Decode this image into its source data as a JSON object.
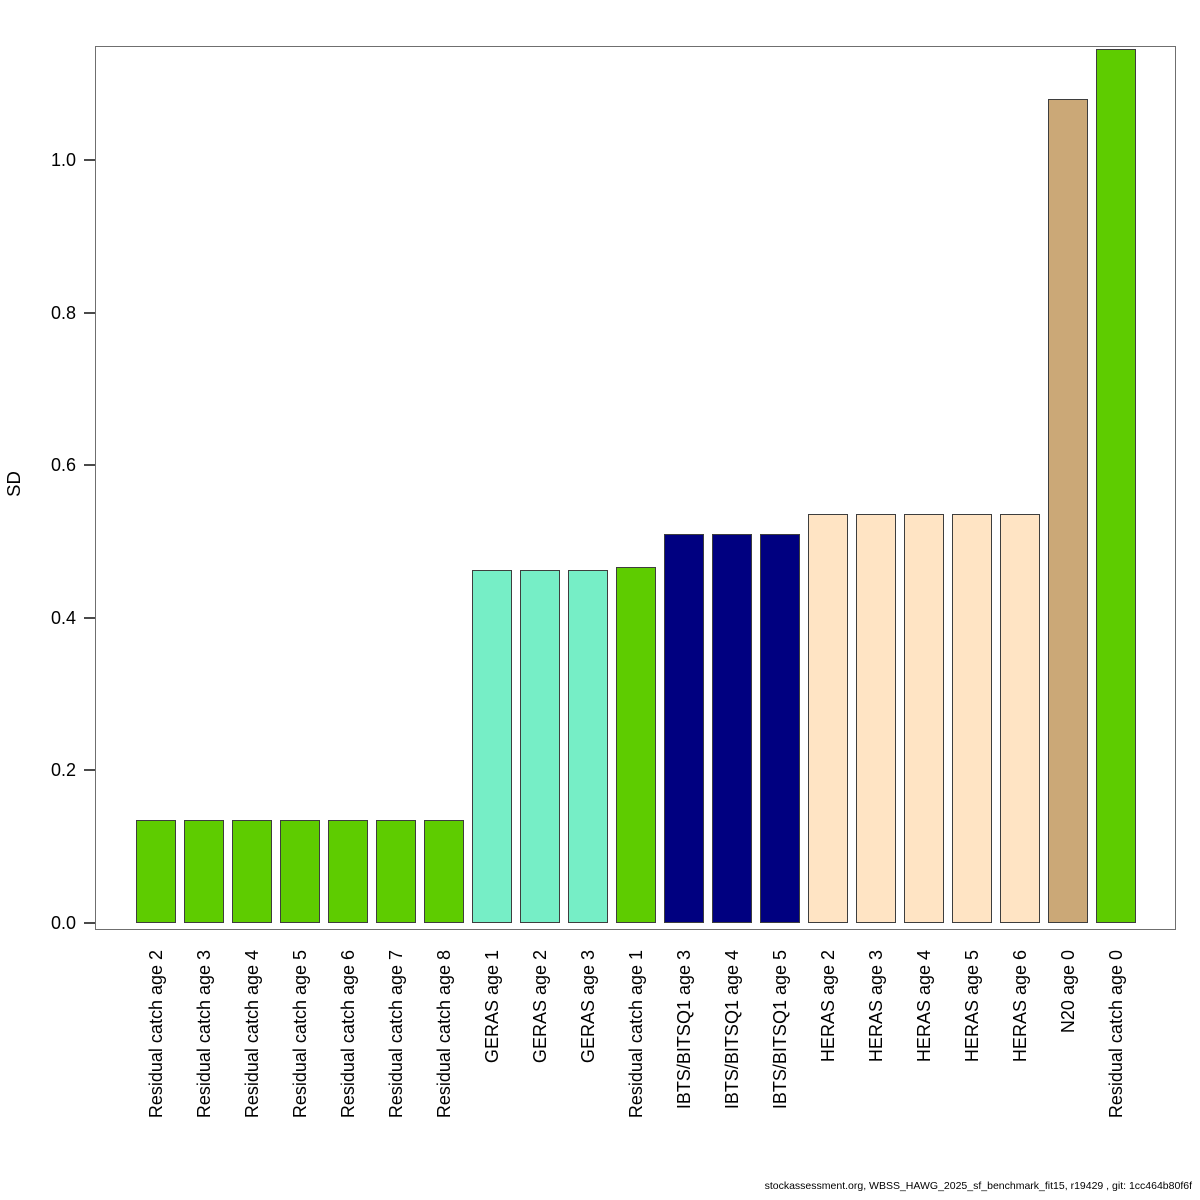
{
  "figure": {
    "footer": "stockassessment.org, WBSS_HAWG_2025_sf_benchmark_fit15, r19429 , git: 1cc464b80f6f"
  },
  "chart_data": {
    "type": "bar",
    "title": "",
    "xlabel": "",
    "ylabel": "SD",
    "ylim": [
      0,
      1.146
    ],
    "yticks": [
      0.0,
      0.2,
      0.4,
      0.6,
      0.8,
      1.0
    ],
    "grid": false,
    "legend": "none",
    "categories": [
      "Residual catch age 2",
      "Residual catch age 3",
      "Residual catch age 4",
      "Residual catch age 5",
      "Residual catch age 6",
      "Residual catch age 7",
      "Residual catch age 8",
      "GERAS age 1",
      "GERAS age 2",
      "GERAS age 3",
      "Residual catch age 1",
      "IBTS/BITSQ1 age 3",
      "IBTS/BITSQ1 age 4",
      "IBTS/BITSQ1 age 5",
      "HERAS age 2",
      "HERAS age 3",
      "HERAS age 4",
      "HERAS age 5",
      "HERAS age 6",
      "N20 age 0",
      "Residual catch age 0"
    ],
    "values": [
      0.135,
      0.135,
      0.135,
      0.135,
      0.135,
      0.135,
      0.135,
      0.463,
      0.463,
      0.463,
      0.467,
      0.51,
      0.51,
      0.51,
      0.536,
      0.536,
      0.536,
      0.536,
      0.536,
      1.08,
      1.145
    ],
    "colors": [
      "#5ecc00",
      "#5ecc00",
      "#5ecc00",
      "#5ecc00",
      "#5ecc00",
      "#5ecc00",
      "#5ecc00",
      "#76eec6",
      "#76eec6",
      "#76eec6",
      "#5ecc00",
      "#000080",
      "#000080",
      "#000080",
      "#ffe4c4",
      "#ffe4c4",
      "#ffe4c4",
      "#ffe4c4",
      "#ffe4c4",
      "#cba877",
      "#5ecc00"
    ],
    "fleet_colors": [
      {
        "fleet": "Residual catch",
        "color": "#5ecc00"
      },
      {
        "fleet": "GERAS",
        "color": "#76eec6"
      },
      {
        "fleet": "IBTS/BITSQ1",
        "color": "#000080"
      },
      {
        "fleet": "HERAS",
        "color": "#ffe4c4"
      },
      {
        "fleet": "N20",
        "color": "#cba877"
      }
    ]
  }
}
